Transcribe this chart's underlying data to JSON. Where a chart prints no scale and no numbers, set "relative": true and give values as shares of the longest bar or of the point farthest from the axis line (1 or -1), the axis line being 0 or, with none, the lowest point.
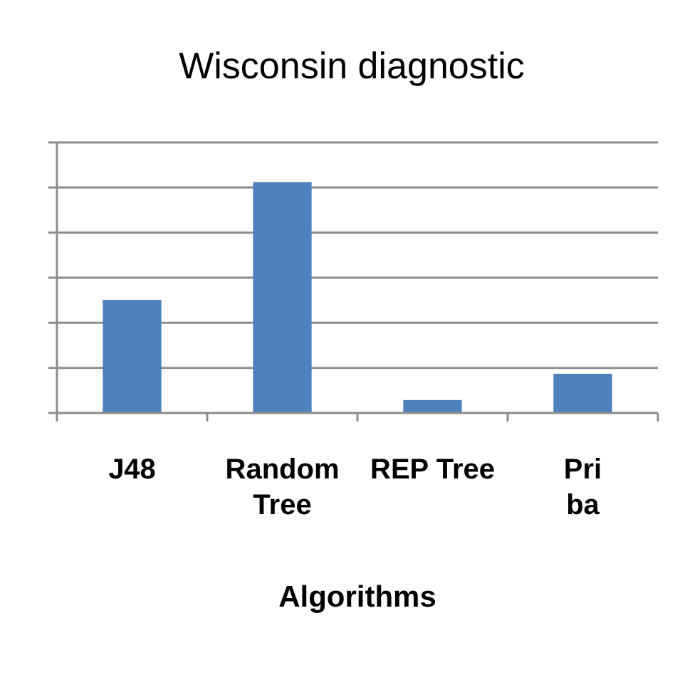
{
  "chart_data": {
    "type": "bar",
    "title": "Wisconsin diagnostic",
    "xlabel": "Algorithms",
    "categories": [
      "J48",
      "Random Tree",
      "REP Tree",
      "Pri\nba"
    ],
    "values": [
      0.49,
      1,
      0.056,
      0.17
    ],
    "color": "#4f81bd",
    "relative": true,
    "grid": "y"
  }
}
